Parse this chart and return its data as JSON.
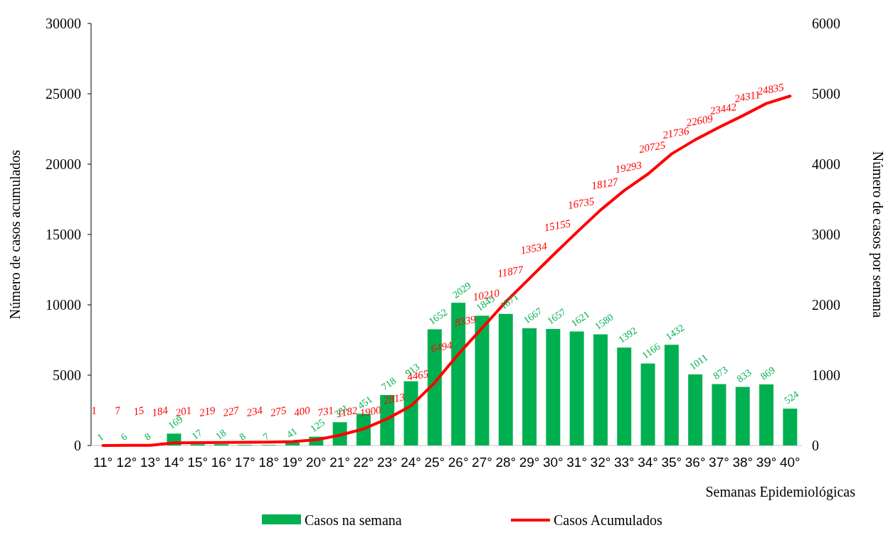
{
  "chart_data": {
    "type": "bar",
    "categories": [
      "11°",
      "12°",
      "13°",
      "14°",
      "15°",
      "16°",
      "17°",
      "18°",
      "19°",
      "20°",
      "21°",
      "22°",
      "23°",
      "24°",
      "25°",
      "26°",
      "27°",
      "28°",
      "29°",
      "30°",
      "31°",
      "32°",
      "33°",
      "34°",
      "35°",
      "36°",
      "37°",
      "38°",
      "39°",
      "40°"
    ],
    "xlabel": "Semanas Epidemiológicas",
    "ylabel": "Número de casos acumulados",
    "y2label": "Número de casos por semana",
    "series": [
      {
        "name": "Casos na semana",
        "axis": "y2",
        "color": "#00b050",
        "values": [
          1,
          6,
          8,
          169,
          17,
          18,
          8,
          7,
          41,
          125,
          331,
          451,
          718,
          913,
          1652,
          2029,
          1845,
          1871,
          1667,
          1657,
          1621,
          1580,
          1392,
          1166,
          1432,
          1011,
          873,
          833,
          869,
          524
        ]
      },
      {
        "name": "Casos Acumulados",
        "type": "line",
        "color": "#ff0000",
        "values": [
          1,
          7,
          15,
          184,
          201,
          219,
          227,
          234,
          275,
          400,
          731,
          1182,
          1900,
          2813,
          4465,
          6494,
          8339,
          10210,
          11877,
          13534,
          15155,
          16735,
          18127,
          19293,
          20725,
          21736,
          22609,
          23442,
          24311,
          24835
        ]
      }
    ],
    "ylim": [
      0,
      30000
    ],
    "yticks": [
      0,
      5000,
      10000,
      15000,
      20000,
      25000,
      30000
    ],
    "y2lim": [
      0,
      6000
    ],
    "y2ticks": [
      0,
      1000,
      2000,
      3000,
      4000,
      5000,
      6000
    ],
    "data_labels": true,
    "grid": false,
    "legend": "bottom",
    "marker": "none",
    "line_style": "solid"
  }
}
